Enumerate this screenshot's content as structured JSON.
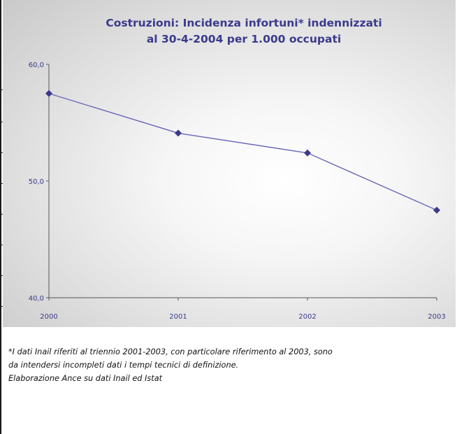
{
  "chart_data": {
    "type": "line",
    "title": "Costruzioni: Incidenza infortuni* indennizzati",
    "subtitle": "al 30-4-2004 per 1.000 occupati",
    "categories": [
      "2000",
      "2001",
      "2002",
      "2003"
    ],
    "series": [
      {
        "values": [
          57.5,
          54.1,
          52.4,
          47.5
        ]
      }
    ],
    "ylim": [
      40,
      60
    ],
    "yticks": [
      "40,0",
      "50,0",
      "60,0"
    ],
    "ytick_values": [
      40,
      50,
      60
    ],
    "grid": false,
    "line_color": "#6a68b8",
    "marker_color": "#3b3a8c",
    "label_color": "#3b3a8c"
  },
  "footnote": {
    "line1": "*I dati Inail riferiti al triennio 2001-2003, con particolare riferimento al 2003, sono",
    "line2": "da intendersi incompleti dati i tempi tecnici di definizione.",
    "line3": "Elaborazione Ance su dati Inail ed Istat"
  }
}
